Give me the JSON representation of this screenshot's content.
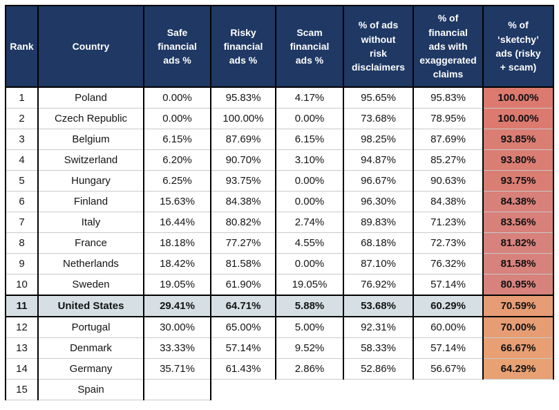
{
  "colors": {
    "header_bg": "#1F3864",
    "header_text": "#FFFFFF",
    "highlight_row_bg": "#D6E0E4",
    "grid_vertical": "#000000",
    "grid_horizontal": "#C9C9C9",
    "sketchy_red": "#DC7A70",
    "sketchy_orange": "#E8A173"
  },
  "chart_data": {
    "type": "table",
    "title": "",
    "columns": [
      {
        "key": "rank",
        "label": "Rank",
        "wrap": "Rank"
      },
      {
        "key": "country",
        "label": "Country",
        "wrap": "Country"
      },
      {
        "key": "safe",
        "label": "Safe financial ads %",
        "wrap": "Safe\nfinancial\nads %"
      },
      {
        "key": "risky",
        "label": "Risky financial ads %",
        "wrap": "Risky\nfinancial\nads %"
      },
      {
        "key": "scam",
        "label": "Scam financial ads %",
        "wrap": "Scam\nfinancial\nads %"
      },
      {
        "key": "no_disclaimers",
        "label": "% of ads without risk disclaimers",
        "wrap": "% of ads\nwithout\nrisk\ndisclaimers"
      },
      {
        "key": "exaggerated",
        "label": "% of financial ads with exaggerated claims",
        "wrap": "% of\nfinancial\nads with\nexaggerated\nclaims"
      },
      {
        "key": "sketchy",
        "label": "% of ‘sketchy’ ads (risky + scam)",
        "wrap": "% of\n‘sketchy’\nads (risky\n+ scam)"
      }
    ],
    "rows": [
      {
        "rank": "1",
        "country": "Poland",
        "safe": "0.00%",
        "risky": "95.83%",
        "scam": "4.17%",
        "no_disclaimers": "95.65%",
        "exaggerated": "95.83%",
        "sketchy": "100.00%",
        "sketchy_bg": "#DC7A70",
        "highlight": false
      },
      {
        "rank": "2",
        "country": "Czech Republic",
        "safe": "0.00%",
        "risky": "100.00%",
        "scam": "0.00%",
        "no_disclaimers": "73.68%",
        "exaggerated": "78.95%",
        "sketchy": "100.00%",
        "sketchy_bg": "#DC7A70",
        "highlight": false
      },
      {
        "rank": "3",
        "country": "Belgium",
        "safe": "6.15%",
        "risky": "87.69%",
        "scam": "6.15%",
        "no_disclaimers": "98.25%",
        "exaggerated": "87.69%",
        "sketchy": "93.85%",
        "sketchy_bg": "#DA7D73",
        "highlight": false
      },
      {
        "rank": "4",
        "country": "Switzerland",
        "safe": "6.20%",
        "risky": "90.70%",
        "scam": "3.10%",
        "no_disclaimers": "94.87%",
        "exaggerated": "85.27%",
        "sketchy": "93.80%",
        "sketchy_bg": "#DA7D73",
        "highlight": false
      },
      {
        "rank": "5",
        "country": "Hungary",
        "safe": "6.25%",
        "risky": "93.75%",
        "scam": "0.00%",
        "no_disclaimers": "96.67%",
        "exaggerated": "90.63%",
        "sketchy": "93.75%",
        "sketchy_bg": "#DA7D73",
        "highlight": false
      },
      {
        "rank": "6",
        "country": "Finland",
        "safe": "15.63%",
        "risky": "84.38%",
        "scam": "0.00%",
        "no_disclaimers": "96.30%",
        "exaggerated": "84.38%",
        "sketchy": "84.38%",
        "sketchy_bg": "#D8807A",
        "highlight": false
      },
      {
        "rank": "7",
        "country": "Italy",
        "safe": "16.44%",
        "risky": "80.82%",
        "scam": "2.74%",
        "no_disclaimers": "89.83%",
        "exaggerated": "71.23%",
        "sketchy": "83.56%",
        "sketchy_bg": "#D8807A",
        "highlight": false
      },
      {
        "rank": "8",
        "country": "France",
        "safe": "18.18%",
        "risky": "77.27%",
        "scam": "4.55%",
        "no_disclaimers": "68.18%",
        "exaggerated": "72.73%",
        "sketchy": "81.82%",
        "sketchy_bg": "#D7827C",
        "highlight": false
      },
      {
        "rank": "9",
        "country": "Netherlands",
        "safe": "18.42%",
        "risky": "81.58%",
        "scam": "0.00%",
        "no_disclaimers": "87.10%",
        "exaggerated": "76.32%",
        "sketchy": "81.58%",
        "sketchy_bg": "#D7827C",
        "highlight": false
      },
      {
        "rank": "10",
        "country": "Sweden",
        "safe": "19.05%",
        "risky": "61.90%",
        "scam": "19.05%",
        "no_disclaimers": "76.92%",
        "exaggerated": "57.14%",
        "sketchy": "80.95%",
        "sketchy_bg": "#D7827C",
        "highlight": false
      },
      {
        "rank": "11",
        "country": "United States",
        "safe": "29.41%",
        "risky": "64.71%",
        "scam": "5.88%",
        "no_disclaimers": "53.68%",
        "exaggerated": "60.29%",
        "sketchy": "70.59%",
        "sketchy_bg": "#E69C74",
        "highlight": true
      },
      {
        "rank": "12",
        "country": "Portugal",
        "safe": "30.00%",
        "risky": "65.00%",
        "scam": "5.00%",
        "no_disclaimers": "92.31%",
        "exaggerated": "60.00%",
        "sketchy": "70.00%",
        "sketchy_bg": "#E69D74",
        "highlight": false
      },
      {
        "rank": "13",
        "country": "Denmark",
        "safe": "33.33%",
        "risky": "57.14%",
        "scam": "9.52%",
        "no_disclaimers": "58.33%",
        "exaggerated": "57.14%",
        "sketchy": "66.67%",
        "sketchy_bg": "#E79F73",
        "highlight": false
      },
      {
        "rank": "14",
        "country": "Germany",
        "safe": "35.71%",
        "risky": "61.43%",
        "scam": "2.86%",
        "no_disclaimers": "52.86%",
        "exaggerated": "56.67%",
        "sketchy": "64.29%",
        "sketchy_bg": "#E8A173",
        "highlight": false
      },
      {
        "rank": "15",
        "country": "Spain",
        "safe": "",
        "risky": null,
        "scam": null,
        "no_disclaimers": null,
        "exaggerated": null,
        "sketchy": null,
        "sketchy_bg": null,
        "highlight": false
      }
    ]
  }
}
